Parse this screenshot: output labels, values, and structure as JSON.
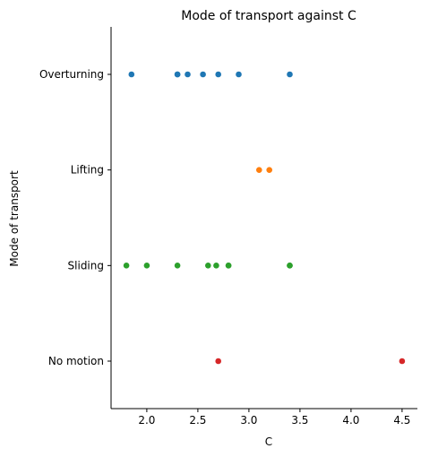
{
  "chart_data": {
    "type": "scatter",
    "title": "Mode of transport against C",
    "xlabel": "C",
    "ylabel": "Mode of transport",
    "xlim": [
      1.65,
      4.65
    ],
    "xticks": [
      2.0,
      2.5,
      3.0,
      3.5,
      4.0,
      4.5
    ],
    "xtick_labels": [
      "2.0",
      "2.5",
      "3.0",
      "3.5",
      "4.0",
      "4.5"
    ],
    "categories": [
      "Overturning",
      "Lifting",
      "Sliding",
      "No motion"
    ],
    "grid": false,
    "series": [
      {
        "category": "Overturning",
        "color": "#1f77b4",
        "x": [
          1.85,
          2.3,
          2.3,
          2.4,
          2.55,
          2.7,
          2.9,
          3.4
        ]
      },
      {
        "category": "Lifting",
        "color": "#ff7f0e",
        "x": [
          3.1,
          3.2
        ]
      },
      {
        "category": "Sliding",
        "color": "#2ca02c",
        "x": [
          1.8,
          2.0,
          2.3,
          2.6,
          2.68,
          2.8,
          2.8,
          3.4,
          3.4
        ]
      },
      {
        "category": "No motion",
        "color": "#d62728",
        "x": [
          2.7,
          4.5
        ]
      }
    ]
  }
}
